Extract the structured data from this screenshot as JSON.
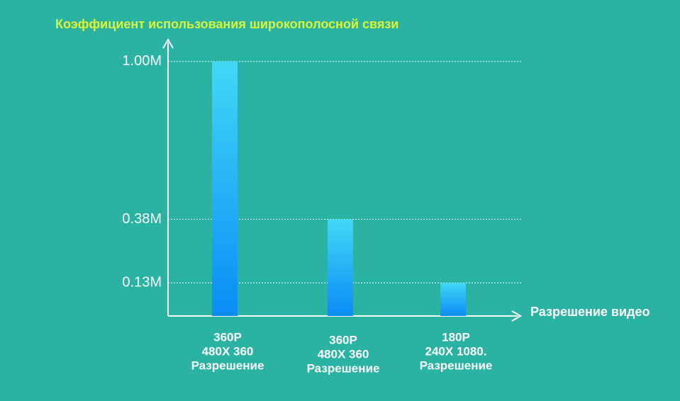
{
  "chart_data": {
    "type": "bar",
    "title": "Коэффициент использования широкополосной связи",
    "x_label": "Разрешение видео",
    "categories": [
      [
        "360P",
        "480X 360",
        "Разрешение"
      ],
      [
        "360P",
        "480X 360",
        "Разрешение"
      ],
      [
        "180P",
        "240X 1080.",
        "Разрешение"
      ]
    ],
    "values": [
      1.0,
      0.38,
      0.13
    ],
    "color": [
      "#41d8f7",
      "#0a8cf5"
    ],
    "ylim": [
      0,
      1.08
    ],
    "yticks": [
      {
        "value": 0.13,
        "label": "0.13M"
      },
      {
        "value": 0.38,
        "label": "0.38M"
      },
      {
        "value": 1.0,
        "label": "1.00M"
      }
    ],
    "grid": true
  }
}
